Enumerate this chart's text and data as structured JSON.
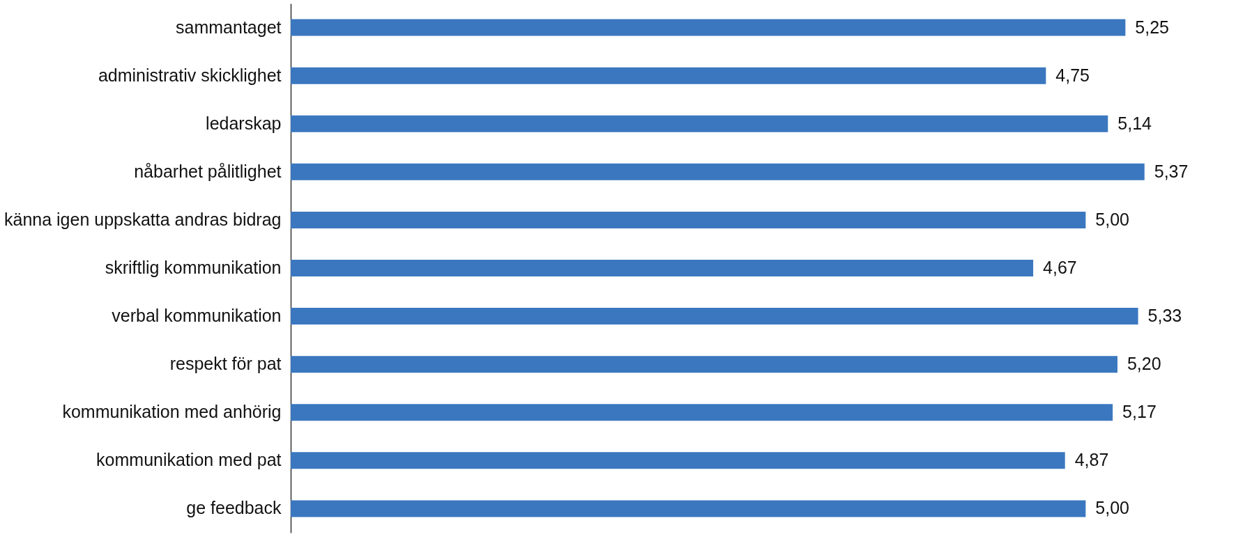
{
  "chart_data": {
    "type": "bar",
    "orientation": "horizontal",
    "categories": [
      "sammantaget",
      "administrativ skicklighet",
      "ledarskap",
      "nåbarhet pålitlighet",
      "känna igen uppskatta andras bidrag",
      "skriftlig kommunikation",
      "verbal kommunikation",
      "respekt för pat",
      "kommunikation med anhörig",
      "kommunikation med pat",
      "ge feedback"
    ],
    "values": [
      5.25,
      4.75,
      5.14,
      5.37,
      5.0,
      4.67,
      5.33,
      5.2,
      5.17,
      4.87,
      5.0
    ],
    "value_labels": [
      "5,25",
      "4,75",
      "5,14",
      "5,37",
      "5,00",
      "4,67",
      "5,33",
      "5,20",
      "5,17",
      "4,87",
      "5,00"
    ],
    "color": "#3a77bf",
    "xlim": [
      0,
      5.7
    ],
    "tick_labels": "y"
  }
}
